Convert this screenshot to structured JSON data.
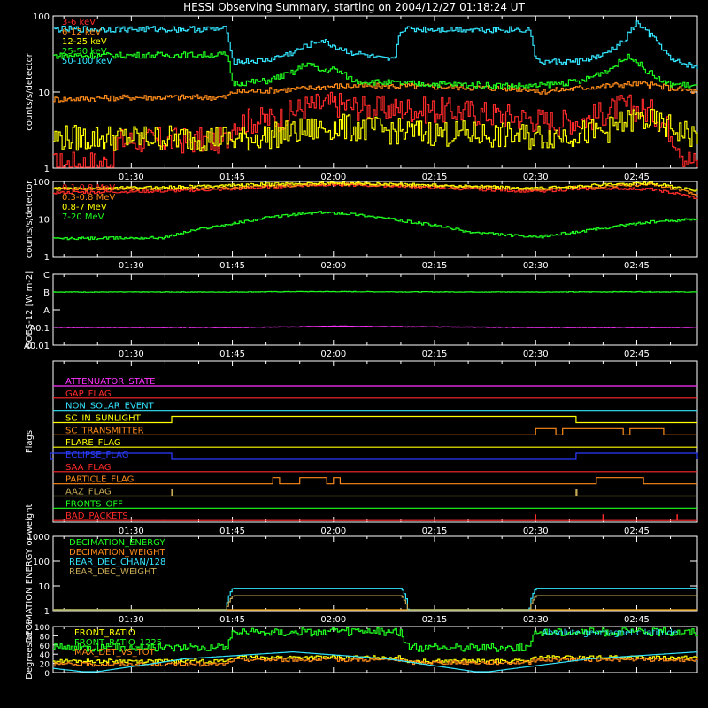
{
  "title": "HESSI Observing Summary, starting on 2004/12/27 01:18:24 UT",
  "colors": {
    "bg": "#000000",
    "axis": "#ffffff",
    "red": "#ff2a2a",
    "orange": "#ff8c1a",
    "yellow": "#ffff00",
    "cyan": "#33e6ff",
    "green": "#1fff1f",
    "magenta": "#ff33ff",
    "blue": "#2a3cff",
    "olive": "#c8aa55"
  },
  "time_axis": {
    "start": "01:18:24",
    "end": "02:54:00",
    "tick_labels": [
      "01:30",
      "01:45",
      "02:00",
      "02:15",
      "02:30",
      "02:45"
    ]
  },
  "chart_data": [
    {
      "type": "line",
      "panel": "low-energy",
      "ylabel": "counts/s/detector",
      "yscale": "log",
      "ylim": [
        1,
        100
      ],
      "ytick_labels": [
        "1",
        "10",
        "100"
      ],
      "legend_position": "top-left",
      "series": [
        {
          "name": "3-6 keV",
          "color": "red",
          "times": [
            "01:18",
            "01:27",
            "01:28",
            "01:44",
            "01:45",
            "01:52",
            "01:56",
            "02:00",
            "02:05",
            "02:10",
            "02:20",
            "02:29",
            "02:33",
            "02:38",
            "02:43",
            "02:47",
            "02:52",
            "02:54"
          ],
          "values": [
            1.1,
            1.2,
            2.3,
            2.3,
            4.0,
            4.5,
            6.5,
            7.0,
            6.0,
            6.0,
            5.5,
            4.5,
            4.0,
            4.5,
            6.5,
            5.5,
            1.4,
            1.1
          ]
        },
        {
          "name": "6-12 keV",
          "color": "orange",
          "times": [
            "01:18",
            "01:30",
            "01:44",
            "01:45",
            "01:55",
            "02:00",
            "02:10",
            "02:20",
            "02:29",
            "02:30",
            "02:40",
            "02:45",
            "02:54"
          ],
          "values": [
            8,
            8.5,
            8.5,
            10,
            11,
            12,
            12,
            11.5,
            11,
            10,
            12,
            13,
            10
          ]
        },
        {
          "name": "12-25 keV",
          "color": "yellow",
          "times": [
            "01:18",
            "01:44",
            "01:45",
            "01:55",
            "02:00",
            "02:10",
            "02:29",
            "02:30",
            "02:40",
            "02:45",
            "02:54"
          ],
          "values": [
            2.5,
            2.5,
            2.3,
            3.0,
            3.5,
            3.0,
            2.6,
            2.6,
            3.0,
            4.5,
            2.5
          ]
        },
        {
          "name": "25-50 keV",
          "color": "green",
          "times": [
            "01:18",
            "01:44",
            "01:45",
            "01:50",
            "01:54",
            "01:56",
            "01:58",
            "02:00",
            "02:03",
            "02:10",
            "02:29",
            "02:30",
            "02:37",
            "02:41",
            "02:44",
            "02:46",
            "02:49",
            "02:54"
          ],
          "values": [
            30,
            31,
            13,
            14,
            18,
            24,
            19,
            20,
            14,
            13,
            12,
            12,
            14,
            20,
            30,
            20,
            13,
            12
          ]
        },
        {
          "name": "50-100 keV",
          "color": "cyan",
          "times": [
            "01:18",
            "01:44",
            "01:45",
            "01:50",
            "01:54",
            "01:58",
            "02:00",
            "02:02",
            "02:07",
            "02:09",
            "02:10",
            "02:29",
            "02:30",
            "02:36",
            "02:40",
            "02:43",
            "02:45",
            "02:47",
            "02:50",
            "02:54"
          ],
          "values": [
            67,
            67,
            25,
            26,
            33,
            48,
            40,
            34,
            27,
            26,
            67,
            66,
            25,
            25,
            30,
            45,
            80,
            55,
            26,
            21
          ]
        }
      ]
    },
    {
      "type": "line",
      "panel": "high-energy",
      "ylabel": "counts/s/detector",
      "yscale": "log",
      "ylim": [
        1,
        100
      ],
      "ytick_labels": [
        "1",
        "10",
        "100"
      ],
      "legend_position": "top-left",
      "series": [
        {
          "name": "0.1-0.8 MeV",
          "color": "red",
          "times": [
            "01:18",
            "01:35",
            "01:45",
            "01:55",
            "02:00",
            "02:10",
            "02:20",
            "02:29",
            "02:30",
            "02:40",
            "02:47",
            "02:54"
          ],
          "values": [
            50,
            55,
            62,
            78,
            82,
            75,
            62,
            55,
            55,
            66,
            62,
            35
          ]
        },
        {
          "name": "0.3-0.8 MeV",
          "color": "orange",
          "times": [
            "01:18",
            "01:35",
            "01:45",
            "01:55",
            "02:00",
            "02:10",
            "02:20",
            "02:29",
            "02:30",
            "02:40",
            "02:47",
            "02:54"
          ],
          "values": [
            62,
            64,
            68,
            80,
            85,
            79,
            70,
            62,
            62,
            75,
            82,
            45
          ]
        },
        {
          "name": "0.8-7 MeV",
          "color": "yellow",
          "times": [
            "01:18",
            "01:35",
            "01:45",
            "01:55",
            "02:00",
            "02:10",
            "02:20",
            "02:29",
            "02:30",
            "02:40",
            "02:47",
            "02:54"
          ],
          "values": [
            65,
            70,
            80,
            88,
            90,
            85,
            75,
            65,
            65,
            82,
            90,
            55
          ]
        },
        {
          "name": "7-20 MeV",
          "color": "green",
          "times": [
            "01:18",
            "01:35",
            "01:45",
            "01:52",
            "01:58",
            "02:02",
            "02:10",
            "02:20",
            "02:30",
            "02:38",
            "02:46",
            "02:54"
          ],
          "values": [
            3,
            3.2,
            7.5,
            12,
            15,
            14,
            9,
            4.5,
            3.2,
            5,
            8,
            10
          ]
        }
      ]
    },
    {
      "type": "line",
      "panel": "goes",
      "ylabel": "GOES-12 [W m-2]",
      "ytick_labels": [
        "A0.01",
        "A0.1",
        "A",
        "B",
        "C"
      ],
      "series": [
        {
          "color": "green",
          "times": [
            "01:18",
            "01:45",
            "01:55",
            "02:00",
            "02:10",
            "02:30",
            "02:45",
            "02:54"
          ],
          "values": [
            1.0,
            1.0,
            1.05,
            1.05,
            1.02,
            1.0,
            1.03,
            1.0
          ],
          "level_units": "B"
        },
        {
          "color": "magenta",
          "times": [
            "01:18",
            "01:45",
            "01:55",
            "02:00",
            "02:10",
            "02:30",
            "02:45",
            "02:54"
          ],
          "values": [
            0.1,
            0.1,
            0.11,
            0.12,
            0.11,
            0.1,
            0.1,
            0.1
          ],
          "level_units": "A"
        }
      ]
    },
    {
      "type": "line",
      "panel": "flags",
      "ylabel": "Flags",
      "series": [
        {
          "name": "ATTENUATOR_STATE",
          "color": "magenta",
          "intervals": []
        },
        {
          "name": "GAP_FLAG",
          "color": "red",
          "intervals": []
        },
        {
          "name": "NON_SOLAR_EVENT",
          "color": "cyan",
          "intervals": []
        },
        {
          "name": "SC_IN_SUNLIGHT",
          "color": "yellow",
          "intervals": [
            [
              "01:36",
              "02:36"
            ]
          ]
        },
        {
          "name": "SC_TRANSMITTER",
          "color": "orange",
          "intervals": [
            [
              "02:30",
              "02:33"
            ],
            [
              "02:34",
              "02:43"
            ],
            [
              "02:44",
              "02:49"
            ]
          ]
        },
        {
          "name": "FLARE_FLAG",
          "color": "yellow",
          "intervals": []
        },
        {
          "name": "ECLIPSE_FLAG",
          "color": "blue",
          "intervals": [
            [
              "01:18",
              "01:36"
            ],
            [
              "02:36",
              "02:54"
            ]
          ]
        },
        {
          "name": "SAA_FLAG",
          "color": "red",
          "intervals": []
        },
        {
          "name": "PARTICLE_FLAG",
          "color": "orange",
          "intervals": [
            [
              "01:51",
              "01:52"
            ],
            [
              "01:55",
              "01:59"
            ],
            [
              "02:00",
              "02:01"
            ],
            [
              "02:39",
              "02:46"
            ]
          ]
        },
        {
          "name": "AAZ_FLAG",
          "color": "olive",
          "intervals": [
            [
              "01:36",
              "01:36"
            ],
            [
              "02:36",
              "02:36"
            ]
          ]
        },
        {
          "name": "FRONTS_OFF",
          "color": "green",
          "intervals": []
        },
        {
          "name": "BAD_PACKETS",
          "color": "red",
          "spikes": [
            "02:30",
            "02:40",
            "02:51"
          ]
        }
      ]
    },
    {
      "type": "line",
      "panel": "decimation",
      "ylabel": "DECIMATION ENERGY or weight",
      "yscale": "log",
      "ylim": [
        1,
        1000
      ],
      "ytick_labels": [
        "1",
        "10",
        "100",
        "1000"
      ],
      "legend_position": "top-left",
      "series": [
        {
          "name": "DECIMATION_ENERGY",
          "color": "green",
          "times": [
            "01:18",
            "02:54"
          ],
          "values": [
            1,
            1
          ]
        },
        {
          "name": "DECIMATION_WEIGHT",
          "color": "orange",
          "times": [
            "01:18",
            "02:54"
          ],
          "values": [
            1,
            1
          ]
        },
        {
          "name": "REAR_DEC_CHAN/128",
          "color": "cyan",
          "times": [
            "01:18",
            "01:44",
            "01:45",
            "02:10",
            "02:11",
            "02:29",
            "02:30",
            "02:54"
          ],
          "values": [
            1,
            1,
            8,
            8,
            1,
            1,
            8,
            8
          ]
        },
        {
          "name": "REAR_DEC_WEIGHT",
          "color": "olive",
          "times": [
            "01:18",
            "01:44",
            "01:45",
            "02:10",
            "02:11",
            "02:29",
            "02:30",
            "02:54"
          ],
          "values": [
            1,
            1,
            4,
            4,
            1,
            1,
            4,
            4
          ]
        }
      ]
    },
    {
      "type": "line",
      "panel": "ratio",
      "ylabel": "Degrees or %",
      "ylim": [
        0,
        100
      ],
      "ytick_labels": [
        "0",
        "20",
        "40",
        "60",
        "80",
        "100"
      ],
      "legend_position": "top-left",
      "annotation": "Absolute geomagnetic latitude",
      "series": [
        {
          "name": "FRONT_RATIO",
          "color": "yellow",
          "times": [
            "01:18",
            "01:44",
            "01:45",
            "02:10",
            "02:11",
            "02:29",
            "02:30",
            "02:54"
          ],
          "values": [
            25,
            25,
            33,
            33,
            25,
            25,
            33,
            33
          ]
        },
        {
          "name": "FRONT_RATIO_1225",
          "color": "green",
          "times": [
            "01:18",
            "01:44",
            "01:45",
            "02:10",
            "02:11",
            "02:29",
            "02:30",
            "02:54"
          ],
          "values": [
            55,
            55,
            88,
            88,
            55,
            55,
            88,
            88
          ]
        },
        {
          "name": "MAX_DET_VS_TOT",
          "color": "orange",
          "times": [
            "01:18",
            "01:44",
            "01:45",
            "02:10",
            "02:11",
            "02:29",
            "02:30",
            "02:54"
          ],
          "values": [
            18,
            18,
            28,
            28,
            22,
            22,
            28,
            28
          ]
        },
        {
          "name": "Absolute geomagnetic latitude",
          "color": "cyan",
          "times": [
            "01:18",
            "01:24",
            "01:38",
            "01:54",
            "02:08",
            "02:22",
            "02:38",
            "02:54"
          ],
          "values": [
            10,
            0,
            30,
            45,
            30,
            0,
            30,
            45
          ]
        }
      ]
    }
  ]
}
